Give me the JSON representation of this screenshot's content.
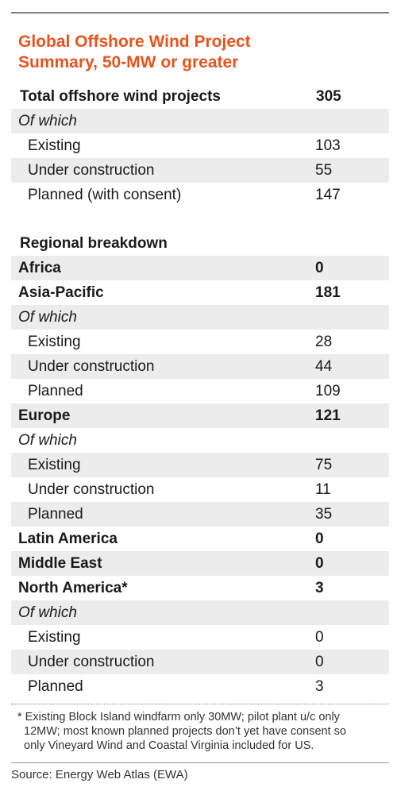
{
  "title": {
    "line1": "Global Offshore Wind Project",
    "line2": "Summary, 50-MW or greater"
  },
  "summary": {
    "total": {
      "label": "Total offshore wind projects",
      "value": "305"
    },
    "of_which": "Of which",
    "rows": [
      {
        "label": "Existing",
        "value": "103"
      },
      {
        "label": "Under construction",
        "value": "55"
      },
      {
        "label": "Planned (with consent)",
        "value": "147"
      }
    ]
  },
  "regional": {
    "heading": "Regional breakdown",
    "africa": {
      "label": "Africa",
      "value": "0"
    },
    "asia_pacific": {
      "label": "Asia-Pacific",
      "value": "181",
      "of_which": "Of which",
      "rows": [
        {
          "label": "Existing",
          "value": "28"
        },
        {
          "label": "Under construction",
          "value": "44"
        },
        {
          "label": "Planned",
          "value": "109"
        }
      ]
    },
    "europe": {
      "label": "Europe",
      "value": "121",
      "of_which": "Of which",
      "rows": [
        {
          "label": "Existing",
          "value": "75"
        },
        {
          "label": "Under construction",
          "value": "11"
        },
        {
          "label": "Planned",
          "value": "35"
        }
      ]
    },
    "latin_america": {
      "label": "Latin America",
      "value": "0"
    },
    "middle_east": {
      "label": "Middle East",
      "value": "0"
    },
    "north_america": {
      "label": "North America*",
      "value": "3",
      "of_which": "Of which",
      "rows": [
        {
          "label": "Existing",
          "value": "0"
        },
        {
          "label": "Under construction",
          "value": "0"
        },
        {
          "label": "Planned",
          "value": "3"
        }
      ]
    }
  },
  "footnote": {
    "line1": "* Existing Block Island windfarm only 30MW; pilot plant u/c only",
    "line2": "12MW; most known planned projects don’t yet have consent so",
    "line3": "only Vineyard Wind and Coastal Virginia included for US."
  },
  "source": "Source: Energy Web Atlas (EWA)",
  "colors": {
    "title": "#e8541e",
    "shade": "#ececec",
    "text": "#1a1a1a"
  }
}
